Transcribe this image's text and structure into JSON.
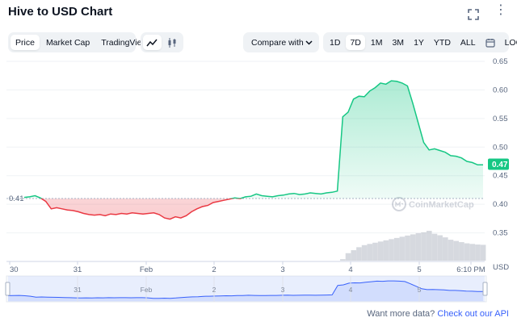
{
  "header": {
    "title": "Hive to USD Chart"
  },
  "toolbar": {
    "view_tabs": [
      {
        "label": "Price",
        "active": true
      },
      {
        "label": "Market Cap",
        "active": false
      },
      {
        "label": "TradingView",
        "active": false
      }
    ],
    "chart_type_icons": [
      "line-chart-icon",
      "candlestick-icon"
    ],
    "compare_label": "Compare with",
    "ranges": [
      {
        "label": "1D",
        "active": false
      },
      {
        "label": "7D",
        "active": true
      },
      {
        "label": "1M",
        "active": false
      },
      {
        "label": "3M",
        "active": false
      },
      {
        "label": "1Y",
        "active": false
      },
      {
        "label": "YTD",
        "active": false
      },
      {
        "label": "ALL",
        "active": false
      }
    ],
    "log_label": "LOG"
  },
  "footer": {
    "prompt": "Want more data?",
    "link": "Check out our API"
  },
  "watermark": "CoinMarketCap",
  "chart_data": {
    "type": "line",
    "xlabel": "",
    "ylabel": "USD",
    "ylim": [
      0.3,
      0.65
    ],
    "y_ticks": [
      "0.65",
      "0.60",
      "0.55",
      "0.50",
      "0.45",
      "0.40",
      "0.35"
    ],
    "x_ticks": [
      "30",
      "31",
      "Feb",
      "2",
      "3",
      "4",
      "5",
      "6:10 PM"
    ],
    "baseline": 0.41,
    "baseline_label": "0.41",
    "current_label": "0.47",
    "current_value": 0.47,
    "colors": {
      "up": "#16c784",
      "down": "#ea3943",
      "volume": "#c4c9d1",
      "navigator": "#3861fb"
    },
    "grid": true,
    "series": [
      {
        "values": [
          0.412,
          0.413,
          0.415,
          0.411,
          0.405,
          0.392,
          0.394,
          0.392,
          0.39,
          0.389,
          0.387,
          0.384,
          0.382,
          0.381,
          0.382,
          0.38,
          0.383,
          0.382,
          0.384,
          0.383,
          0.385,
          0.384,
          0.383,
          0.384,
          0.385,
          0.382,
          0.376,
          0.374,
          0.378,
          0.376,
          0.38,
          0.387,
          0.392,
          0.396,
          0.398,
          0.403,
          0.405,
          0.407,
          0.409,
          0.411,
          0.41,
          0.413,
          0.414,
          0.418,
          0.415,
          0.414,
          0.413,
          0.415,
          0.416,
          0.418,
          0.419,
          0.417,
          0.418,
          0.42,
          0.419,
          0.418,
          0.42,
          0.421,
          0.423,
          0.553,
          0.561,
          0.584,
          0.589,
          0.588,
          0.598,
          0.604,
          0.612,
          0.61,
          0.616,
          0.615,
          0.612,
          0.607,
          0.576,
          0.542,
          0.508,
          0.495,
          0.497,
          0.494,
          0.491,
          0.485,
          0.484,
          0.481,
          0.475,
          0.473,
          0.469,
          0.469
        ],
        "volume": [
          0,
          0,
          0,
          0,
          0,
          0,
          0,
          0,
          0,
          0,
          0,
          0,
          0,
          0,
          0,
          0,
          0,
          0,
          0,
          0,
          0,
          0,
          0,
          0,
          0,
          0,
          0,
          0,
          0,
          0,
          0,
          0,
          0,
          0,
          0,
          0,
          0,
          0,
          0,
          0,
          0,
          0,
          0,
          0,
          0,
          0,
          0,
          0,
          0,
          0,
          0,
          0,
          0,
          0,
          0,
          0,
          0,
          0,
          0,
          0.05,
          0.25,
          0.35,
          0.45,
          0.52,
          0.56,
          0.6,
          0.64,
          0.68,
          0.72,
          0.76,
          0.8,
          0.84,
          0.88,
          0.92,
          0.95,
          1.0,
          0.9,
          0.85,
          0.78,
          0.7,
          0.66,
          0.62,
          0.58,
          0.56,
          0.54,
          0.53
        ]
      }
    ]
  }
}
